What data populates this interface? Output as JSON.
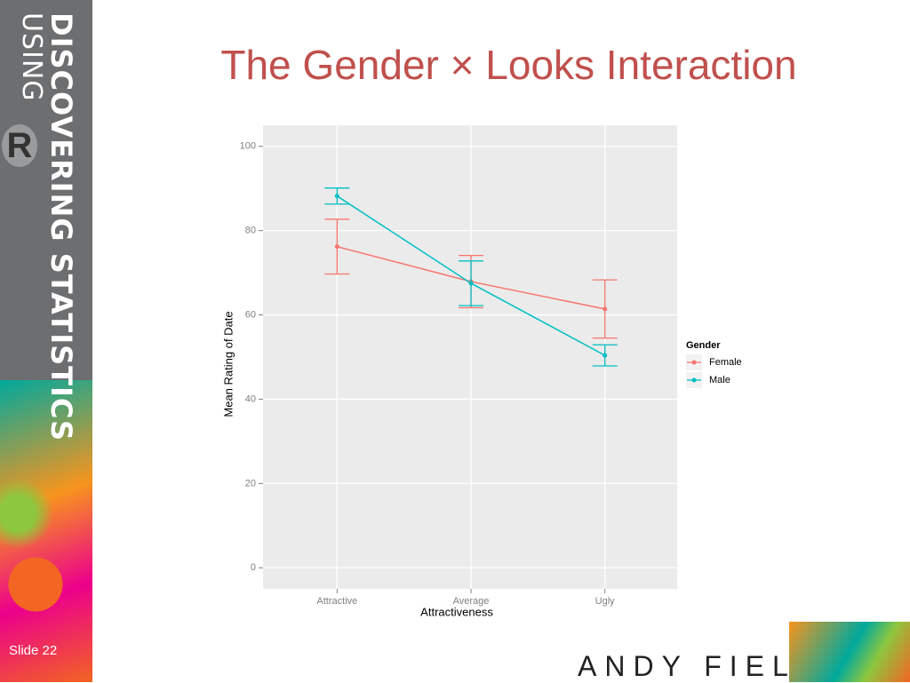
{
  "slide": {
    "title": "The Gender × Looks Interaction",
    "brand_line1": "DISCOVERING STATISTICS",
    "brand_line2": "USING",
    "brand_logo": "R",
    "slide_number": "Slide 22",
    "author": "ANDY FIELD"
  },
  "chart_data": {
    "type": "line",
    "categories": [
      "Attractive",
      "Average",
      "Ugly"
    ],
    "series": [
      {
        "name": "Female",
        "color": "#f8766d",
        "values": [
          76.2,
          67.9,
          61.4
        ],
        "errors": [
          6.5,
          6.2,
          6.9
        ]
      },
      {
        "name": "Male",
        "color": "#00bfc4",
        "values": [
          88.2,
          67.5,
          50.4
        ],
        "errors": [
          1.9,
          5.3,
          2.5
        ]
      }
    ],
    "x_label": "Attractiveness",
    "y_label": "Mean Rating of Date",
    "legend_title": "Gender",
    "legend": "right",
    "ylim": [
      -5,
      105
    ],
    "yticks": [
      0,
      20,
      40,
      60,
      80,
      100
    ],
    "grid": true
  }
}
